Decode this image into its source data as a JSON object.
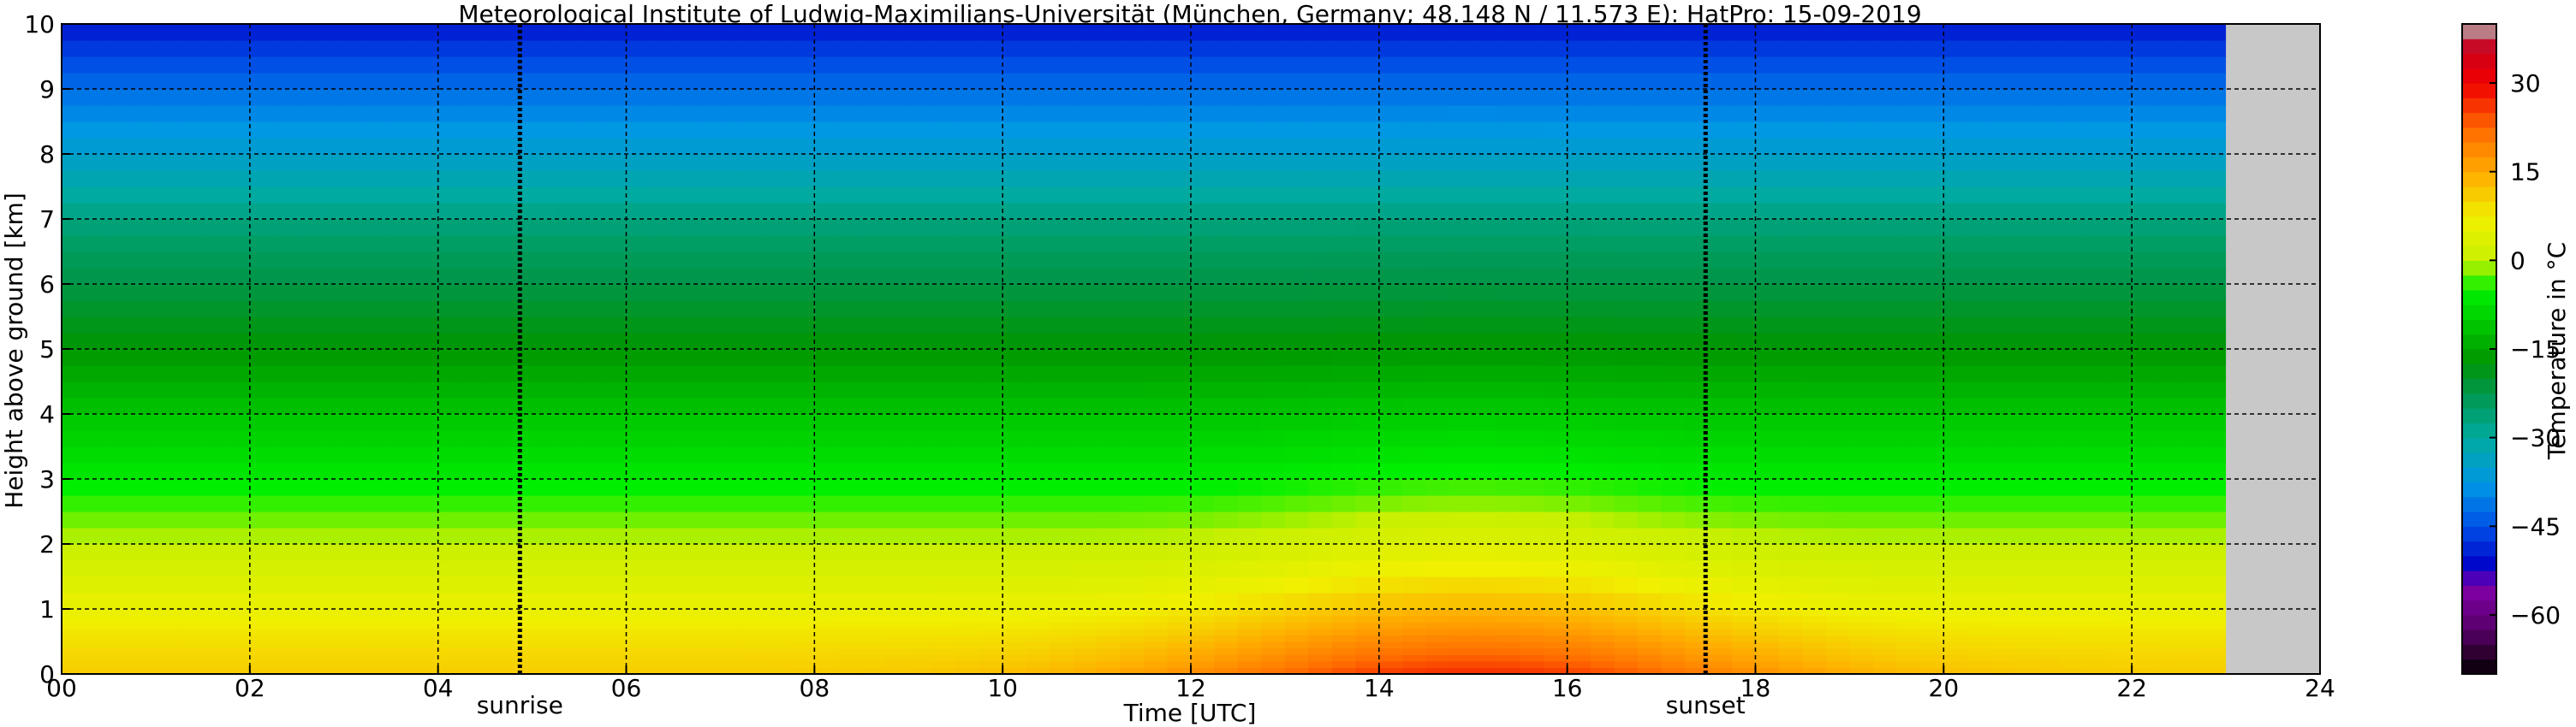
{
  "chart_data": {
    "type": "heatmap",
    "title": "Meteorological Institute of Ludwig-Maximilians-Universität (München, Germany; 48.148 N / 11.573 E):    HatPro: 15-09-2019",
    "xlabel": "Time [UTC]",
    "ylabel": "Height above ground [km]",
    "colorbar_label": "Temperature in °C",
    "xlim": [
      0,
      24
    ],
    "ylim": [
      0,
      10
    ],
    "xticks": [
      "00",
      "02",
      "04",
      "06",
      "08",
      "10",
      "12",
      "14",
      "16",
      "18",
      "20",
      "22",
      "24"
    ],
    "yticks": [
      "0",
      "1",
      "2",
      "3",
      "4",
      "5",
      "6",
      "7",
      "8",
      "9",
      "10"
    ],
    "grid": true,
    "data_end_hour": 23.0,
    "missing_color": "#c8c8c8",
    "colorbar": {
      "range": [
        -70,
        40
      ],
      "ticks": [
        "30",
        "15",
        "0",
        "−15",
        "−30",
        "−45",
        "−60"
      ],
      "tick_values": [
        30,
        15,
        0,
        -15,
        -30,
        -45,
        -60
      ]
    },
    "markers": [
      {
        "label": "sunrise",
        "hour": 4.87
      },
      {
        "label": "sunset",
        "hour": 17.47
      }
    ],
    "temperature_profile": {
      "heights_km": [
        0,
        0.25,
        0.5,
        1,
        1.5,
        2,
        3,
        4,
        5,
        6,
        6.5,
        7,
        8,
        9,
        9.5,
        10
      ],
      "night_celsius": [
        11,
        10,
        9,
        6,
        3,
        0,
        -6,
        -11,
        -17,
        -22,
        -24,
        -27,
        -35,
        -42,
        -46,
        -50
      ],
      "afternoon_surface_celsius": 27
    }
  }
}
